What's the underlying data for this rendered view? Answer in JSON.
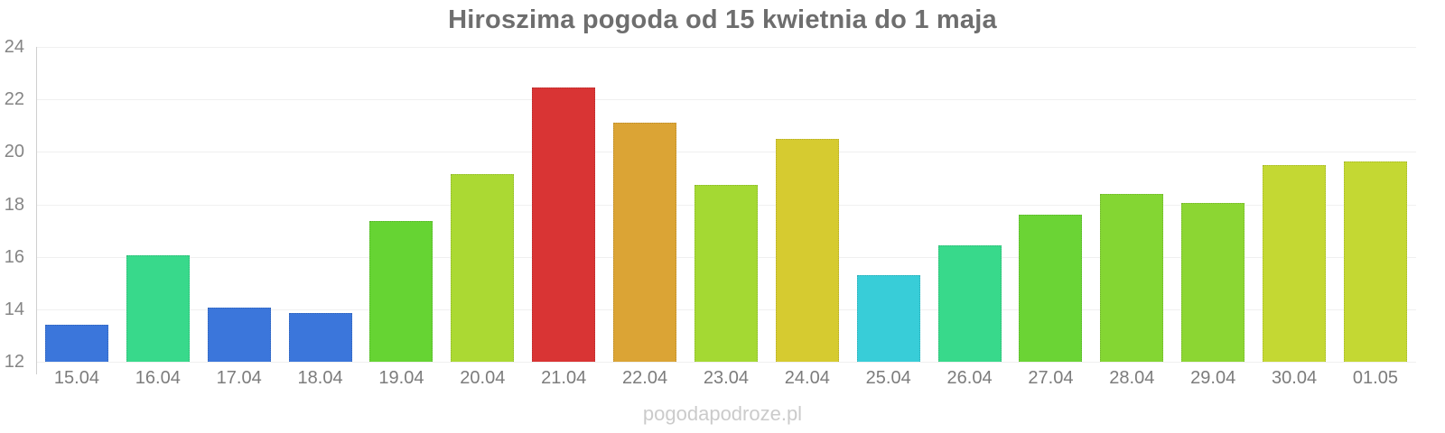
{
  "watermark": "pogodapodroze.pl",
  "colors": {
    "title": "#6e6e6e",
    "y_tick_label": "#858585",
    "x_tick_label": "#7c7c7c",
    "gridline": "#f0f0f0",
    "axis_line": "#cfcfcf",
    "watermark": "#cbcbcb",
    "background": "#ffffff"
  },
  "chart_data": {
    "type": "bar",
    "title": "Hiroszima pogoda od 15 kwietnia do 1 maja",
    "xlabel": "",
    "ylabel": "",
    "categories": [
      "15.04",
      "16.04",
      "17.04",
      "18.04",
      "19.04",
      "20.04",
      "21.04",
      "22.04",
      "23.04",
      "24.04",
      "25.04",
      "26.04",
      "27.04",
      "28.04",
      "29.04",
      "30.04",
      "01.05"
    ],
    "values": [
      13.4,
      16.05,
      14.05,
      13.85,
      17.35,
      19.15,
      22.45,
      21.1,
      18.75,
      20.5,
      15.3,
      16.45,
      17.6,
      18.4,
      18.05,
      19.5,
      19.65
    ],
    "bar_colors": [
      "#3b76db",
      "#38d98b",
      "#3b76db",
      "#3b76db",
      "#66d433",
      "#abd933",
      "#d93434",
      "#dba435",
      "#a4d933",
      "#d6cb30",
      "#38cdd8",
      "#38d98b",
      "#6bd435",
      "#84d633",
      "#8cd633",
      "#c4d833",
      "#c4d833"
    ],
    "ylim": [
      12,
      24
    ],
    "yticks": [
      12,
      14,
      16,
      18,
      20,
      22,
      24
    ],
    "grid": true,
    "legend": "none"
  }
}
